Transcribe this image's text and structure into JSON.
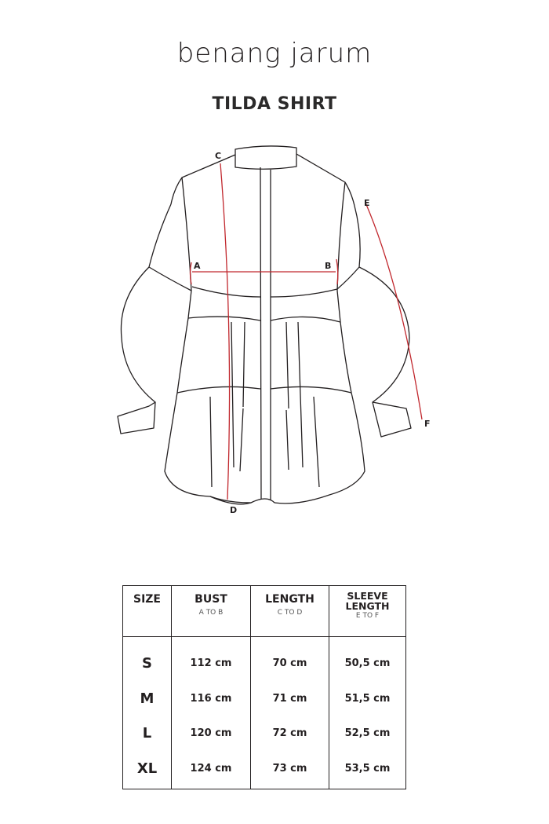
{
  "brand": {
    "logo_text": "benang jarum"
  },
  "title": "TILDA SHIRT",
  "diagram": {
    "measure_color": "#c1272d",
    "labels": {
      "a": "A",
      "b": "B",
      "c": "C",
      "d": "D",
      "e": "E",
      "f": "F"
    }
  },
  "table": {
    "headers": [
      {
        "label": "SIZE",
        "sub": ""
      },
      {
        "label": "BUST",
        "sub": "A TO B"
      },
      {
        "label": "LENGTH",
        "sub": "C TO D"
      },
      {
        "label": "SLEEVE LENGTH",
        "sub": "E TO F"
      }
    ],
    "rows": [
      {
        "size": "S",
        "bust": "112 cm",
        "length": "70 cm",
        "sleeve": "50,5 cm"
      },
      {
        "size": "M",
        "bust": "116 cm",
        "length": "71 cm",
        "sleeve": "51,5 cm"
      },
      {
        "size": "L",
        "bust": "120 cm",
        "length": "72 cm",
        "sleeve": "52,5 cm"
      },
      {
        "size": "XL",
        "bust": "124 cm",
        "length": "73 cm",
        "sleeve": "53,5 cm"
      }
    ]
  }
}
